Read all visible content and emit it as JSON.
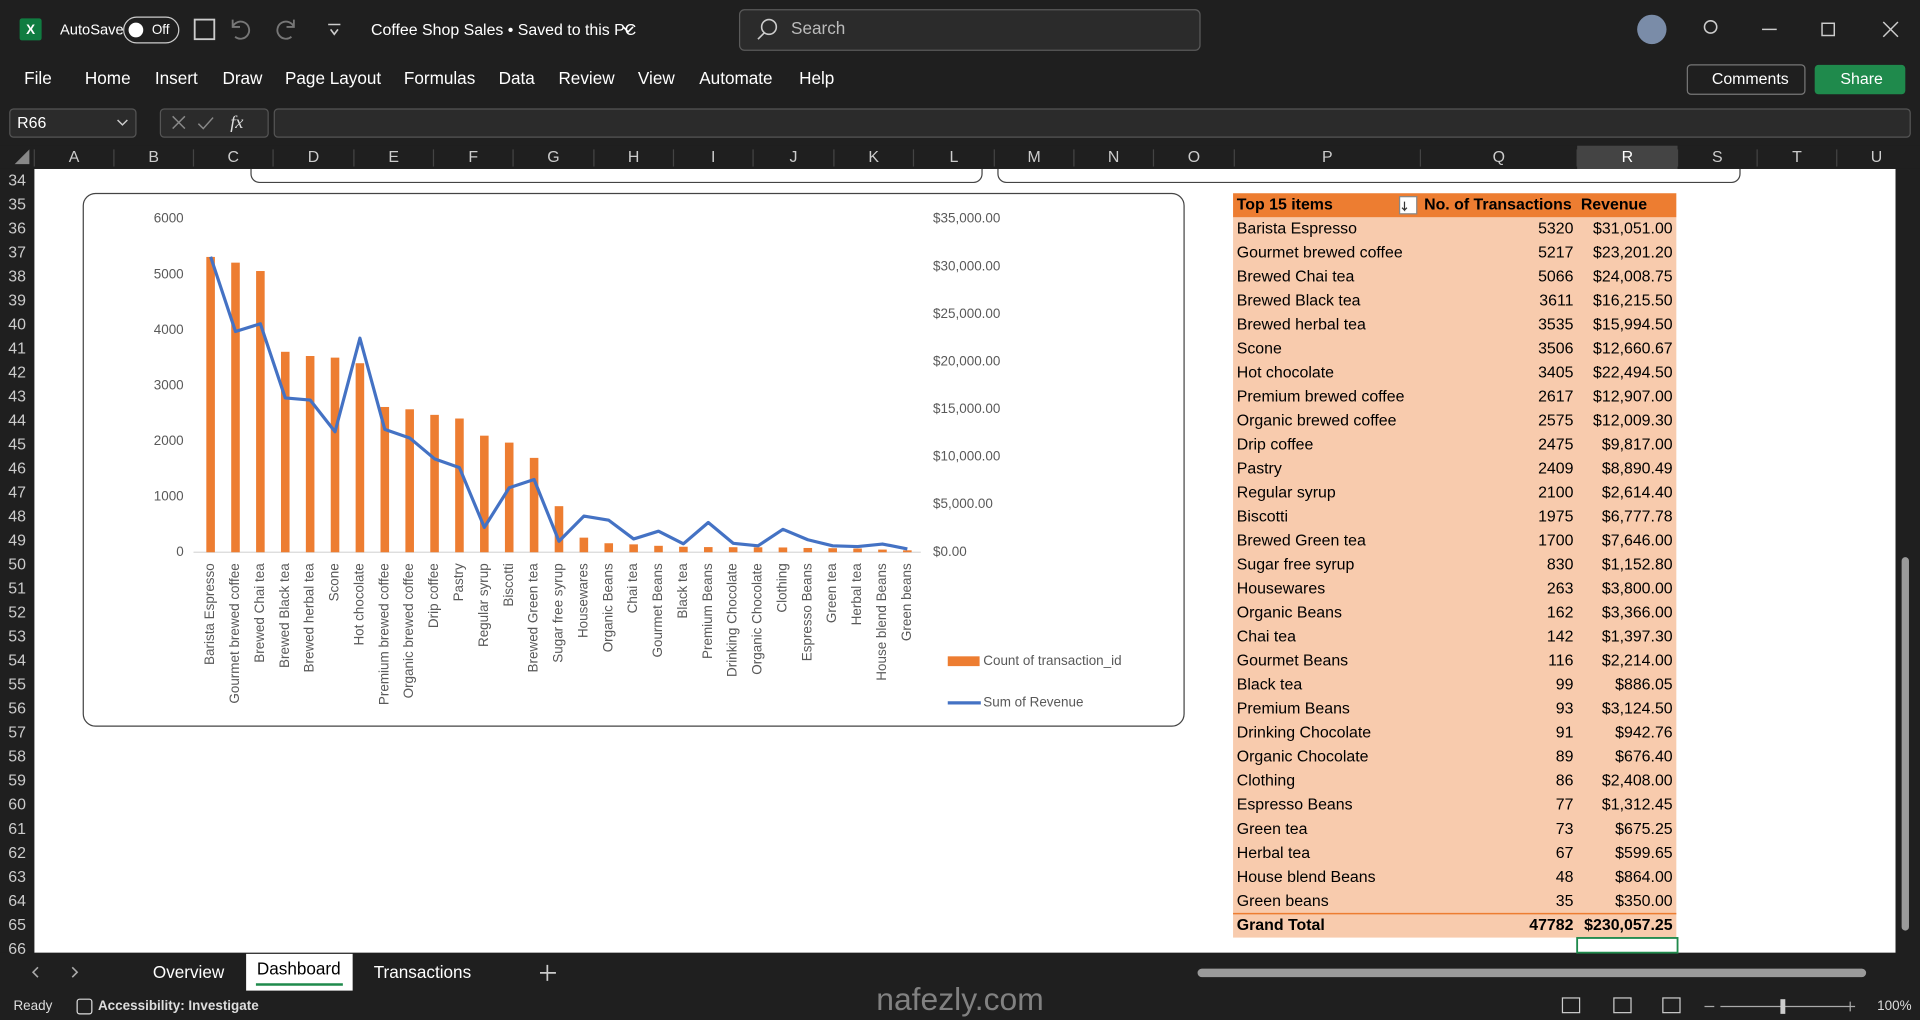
{
  "title_bar": {
    "autosave": "AutoSave",
    "toggle": "Off",
    "document": "Coffee Shop Sales • Saved to this PC",
    "search": "Search"
  },
  "ribbon": {
    "tabs": [
      "File",
      "Home",
      "Insert",
      "Draw",
      "Page Layout",
      "Formulas",
      "Data",
      "Review",
      "View",
      "Automate",
      "Help"
    ],
    "comments": "Comments",
    "share": "Share"
  },
  "formula_bar": {
    "name_box": "R66",
    "fx": "fx"
  },
  "columns": [
    "A",
    "B",
    "C",
    "D",
    "E",
    "F",
    "G",
    "H",
    "I",
    "J",
    "K",
    "L",
    "M",
    "N",
    "O",
    "P",
    "Q",
    "R",
    "S",
    "T",
    "U"
  ],
  "rows": [
    34,
    35,
    36,
    37,
    38,
    39,
    40,
    41,
    42,
    43,
    44,
    45,
    46,
    47,
    48,
    49,
    50,
    51,
    52,
    53,
    54,
    55,
    56,
    57,
    58,
    59,
    60,
    61,
    62,
    63,
    64,
    65,
    66
  ],
  "pivot_table": {
    "headers": [
      "Top 15 items",
      "No. of Transactions",
      "Revenue"
    ],
    "rows": [
      [
        "Barista Espresso",
        "5320",
        "$31,051.00"
      ],
      [
        "Gourmet brewed coffee",
        "5217",
        "$23,201.20"
      ],
      [
        "Brewed Chai tea",
        "5066",
        "$24,008.75"
      ],
      [
        "Brewed Black tea",
        "3611",
        "$16,215.50"
      ],
      [
        "Brewed herbal tea",
        "3535",
        "$15,994.50"
      ],
      [
        "Scone",
        "3506",
        "$12,660.67"
      ],
      [
        "Hot chocolate",
        "3405",
        "$22,494.50"
      ],
      [
        "Premium brewed coffee",
        "2617",
        "$12,907.00"
      ],
      [
        "Organic brewed coffee",
        "2575",
        "$12,009.30"
      ],
      [
        "Drip coffee",
        "2475",
        "$9,817.00"
      ],
      [
        "Pastry",
        "2409",
        "$8,890.49"
      ],
      [
        "Regular syrup",
        "2100",
        "$2,614.40"
      ],
      [
        "Biscotti",
        "1975",
        "$6,777.78"
      ],
      [
        "Brewed Green tea",
        "1700",
        "$7,646.00"
      ],
      [
        "Sugar free syrup",
        "830",
        "$1,152.80"
      ],
      [
        "Housewares",
        "263",
        "$3,800.00"
      ],
      [
        "Organic Beans",
        "162",
        "$3,366.00"
      ],
      [
        "Chai tea",
        "142",
        "$1,397.30"
      ],
      [
        "Gourmet Beans",
        "116",
        "$2,214.00"
      ],
      [
        "Black tea",
        "99",
        "$886.05"
      ],
      [
        "Premium Beans",
        "93",
        "$3,124.50"
      ],
      [
        "Drinking Chocolate",
        "91",
        "$942.76"
      ],
      [
        "Organic Chocolate",
        "89",
        "$676.40"
      ],
      [
        "Clothing",
        "86",
        "$2,408.00"
      ],
      [
        "Espresso Beans",
        "77",
        "$1,312.45"
      ],
      [
        "Green tea",
        "73",
        "$675.25"
      ],
      [
        "Herbal tea",
        "67",
        "$599.65"
      ],
      [
        "House blend Beans",
        "48",
        "$864.00"
      ],
      [
        "Green beans",
        "35",
        "$350.00"
      ]
    ],
    "total": [
      "Grand Total",
      "47782",
      "$230,057.25"
    ]
  },
  "chart_data": {
    "type": "bar",
    "categories": [
      "Barista Espresso",
      "Gourmet brewed coffee",
      "Brewed Chai tea",
      "Brewed Black tea",
      "Brewed herbal tea",
      "Scone",
      "Hot chocolate",
      "Premium brewed coffee",
      "Organic brewed coffee",
      "Drip coffee",
      "Pastry",
      "Regular syrup",
      "Biscotti",
      "Brewed Green tea",
      "Sugar free syrup",
      "Housewares",
      "Organic Beans",
      "Chai tea",
      "Gourmet Beans",
      "Black tea",
      "Premium Beans",
      "Drinking Chocolate",
      "Organic Chocolate",
      "Clothing",
      "Espresso Beans",
      "Green tea",
      "Herbal tea",
      "House blend Beans",
      "Green beans"
    ],
    "series": [
      {
        "name": "Count of transaction_id",
        "color": "#ed7d31",
        "values": [
          5320,
          5217,
          5066,
          3611,
          3535,
          3506,
          3405,
          2617,
          2575,
          2475,
          2409,
          2100,
          1975,
          1700,
          830,
          263,
          162,
          142,
          116,
          99,
          93,
          91,
          89,
          86,
          77,
          73,
          67,
          48,
          35
        ]
      },
      {
        "name": "Sum of Revenue",
        "color": "#4472c4",
        "type": "line",
        "axis": "y2",
        "values": [
          31051,
          23201.2,
          24008.75,
          16215.5,
          15994.5,
          12660.67,
          22494.5,
          12907,
          12009.3,
          9817,
          8890.49,
          2614.4,
          6777.78,
          7646,
          1152.8,
          3800,
          3366,
          1397.3,
          2214,
          886.05,
          3124.5,
          942.76,
          676.4,
          2408,
          1312.45,
          675.25,
          599.65,
          864,
          350
        ]
      }
    ],
    "ylim": [
      0,
      6000
    ],
    "yticks": [
      0,
      1000,
      2000,
      3000,
      4000,
      5000,
      6000
    ],
    "y2lim": [
      0,
      35000
    ],
    "y2ticks": [
      {
        "value": 0,
        "label": "$0.00"
      },
      {
        "value": 5000,
        "label": "$5,000.00"
      },
      {
        "value": 10000,
        "label": "$10,000.00"
      },
      {
        "value": 15000,
        "label": "$15,000.00"
      },
      {
        "value": 20000,
        "label": "$20,000.00"
      },
      {
        "value": 25000,
        "label": "$25,000.00"
      },
      {
        "value": 30000,
        "label": "$30,000.00"
      },
      {
        "value": 35000,
        "label": "$35,000.00"
      }
    ],
    "grid": false,
    "legend": "right"
  },
  "sheet_tabs": [
    "Overview",
    "Dashboard",
    "Transactions"
  ],
  "status_bar": {
    "ready": "Ready",
    "accessibility": "Accessibility: Investigate",
    "zoom": "100%"
  },
  "watermark": "nafezly.com"
}
